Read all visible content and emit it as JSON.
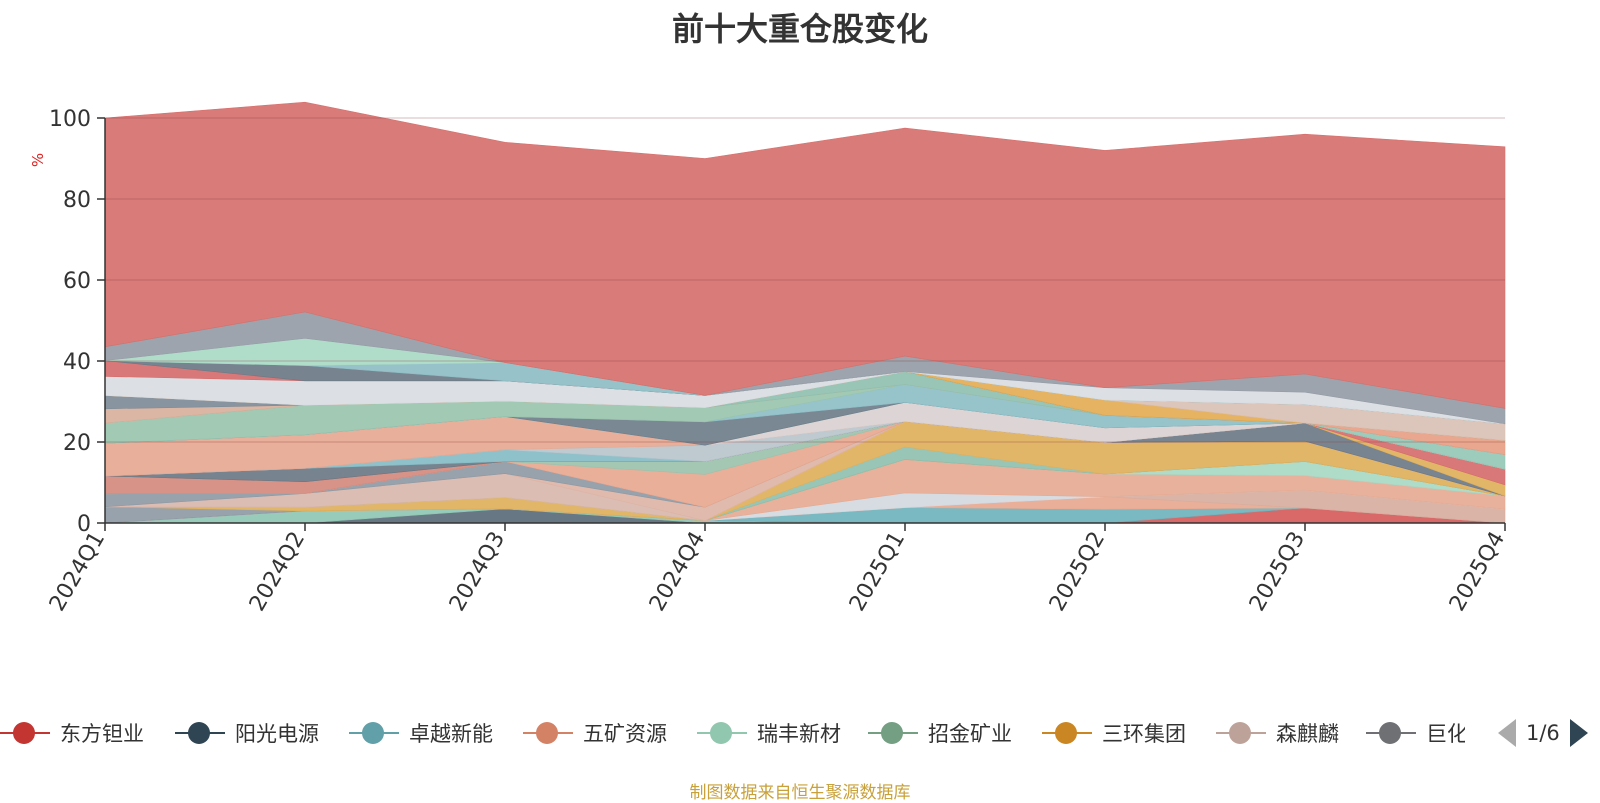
{
  "chart_data": {
    "type": "area",
    "stacked": true,
    "title": "前十大重仓股变化",
    "ylabel": "%",
    "ylim": [
      0,
      100
    ],
    "yticks": [
      0,
      20,
      40,
      60,
      80,
      100
    ],
    "categories": [
      "2024Q1",
      "2024Q2",
      "2024Q3",
      "2024Q4",
      "2025Q1",
      "2025Q2",
      "2025Q3",
      "2025Q4"
    ],
    "series": [
      {
        "color": "#5b6b7a",
        "values": [
          0.0,
          0.0,
          3.5,
          0.0,
          0.0,
          0.0,
          0.0,
          0.0
        ]
      },
      {
        "color": "#8fc7b3",
        "values": [
          0.0,
          3.0,
          0.0,
          0.6,
          0.0,
          0.0,
          0.0,
          0.0
        ]
      },
      {
        "color": "#d65b5b",
        "values": [
          0.0,
          0.0,
          0.0,
          0.0,
          0.0,
          0.0,
          3.7,
          0.0
        ]
      },
      {
        "color": "#6fb3bd",
        "values": [
          0.0,
          0.0,
          0.0,
          0.0,
          3.8,
          3.4,
          0.0,
          0.0
        ]
      },
      {
        "color": "#e8a890",
        "values": [
          0.0,
          0.0,
          0.0,
          0.0,
          0.0,
          3.1,
          0.0,
          0.0
        ]
      },
      {
        "color": "#d7ae9f",
        "values": [
          0.0,
          0.0,
          0.0,
          0.0,
          0.0,
          0.0,
          4.4,
          3.4
        ]
      },
      {
        "color": "#d4d8df",
        "values": [
          0.0,
          0.0,
          0.0,
          0.0,
          3.6,
          0.0,
          0.0,
          0.0
        ]
      },
      {
        "color": "#e6aa93",
        "values": [
          0.0,
          0.0,
          0.0,
          0.0,
          8.3,
          5.6,
          3.6,
          3.3
        ]
      },
      {
        "color": "#a8d8c4",
        "values": [
          0.0,
          0.0,
          0.0,
          0.0,
          0.0,
          0.0,
          3.5,
          0.0
        ]
      },
      {
        "color": "#8e9aa5",
        "values": [
          4.0,
          0.0,
          0.0,
          0.0,
          0.0,
          0.0,
          0.0,
          0.0
        ]
      },
      {
        "color": "#e0b05c",
        "values": [
          0.0,
          0.9,
          2.8,
          0.0,
          0.0,
          0.0,
          0.0,
          0.0
        ]
      },
      {
        "color": "#8fc0b0",
        "values": [
          0.0,
          0.0,
          0.0,
          0.0,
          3.1,
          0.0,
          0.0,
          0.0
        ]
      },
      {
        "color": "#e0b05c",
        "values": [
          0.0,
          0.0,
          0.0,
          0.0,
          6.3,
          7.8,
          5.0,
          0.0
        ]
      },
      {
        "color": "#d8b7ad",
        "values": [
          0.0,
          3.4,
          5.9,
          0.0,
          0.0,
          0.0,
          0.0,
          0.0
        ]
      },
      {
        "color": "#ddb4a6",
        "values": [
          0.0,
          0.0,
          0.0,
          3.3,
          0.0,
          0.0,
          0.0,
          0.0
        ]
      },
      {
        "color": "#8e9aa5",
        "values": [
          3.2,
          0.0,
          3.0,
          0.0,
          0.0,
          0.0,
          0.0,
          0.0
        ]
      },
      {
        "color": "#e8a890",
        "values": [
          0.0,
          0.0,
          0.0,
          8.1,
          0.0,
          0.0,
          0.0,
          0.0
        ]
      },
      {
        "color": "#9cc2ad",
        "values": [
          0.0,
          0.0,
          0.0,
          3.2,
          0.0,
          0.0,
          0.0,
          0.0
        ]
      },
      {
        "color": "#d58a7f",
        "values": [
          4.4,
          2.9,
          0.0,
          0.0,
          0.0,
          0.0,
          0.0,
          0.0
        ]
      },
      {
        "color": "#6d7b88",
        "values": [
          0.0,
          0.0,
          0.0,
          0.0,
          0.0,
          0.0,
          4.5,
          0.0
        ]
      },
      {
        "color": "#e0b05c",
        "values": [
          0.0,
          0.0,
          0.0,
          0.0,
          0.0,
          0.0,
          0.0,
          2.7
        ]
      },
      {
        "color": "#d66c6c",
        "values": [
          0.0,
          0.0,
          0.0,
          0.0,
          0.0,
          0.0,
          0.0,
          3.9
        ]
      },
      {
        "color": "#6b7a86",
        "values": [
          0.0,
          3.3,
          0.0,
          0.0,
          0.0,
          0.0,
          0.0,
          0.0
        ]
      },
      {
        "color": "#86bcc6",
        "values": [
          0.0,
          0.0,
          2.9,
          0.0,
          0.0,
          0.0,
          0.0,
          0.0
        ]
      },
      {
        "color": "#b9c4cc",
        "values": [
          0.0,
          0.0,
          0.0,
          4.0,
          0.0,
          0.0,
          0.0,
          0.0
        ]
      },
      {
        "color": "#e6a892",
        "values": [
          8.1,
          8.3,
          8.2,
          0.0,
          0.0,
          0.0,
          0.0,
          0.0
        ]
      },
      {
        "color": "#dad1d1",
        "values": [
          0.0,
          0.0,
          0.0,
          0.0,
          4.7,
          3.6,
          0.0,
          0.0
        ]
      },
      {
        "color": "#95c7b6",
        "values": [
          0.0,
          0.0,
          0.0,
          0.0,
          0.0,
          0.0,
          0.0,
          3.6
        ]
      },
      {
        "color": "#6f7e8b",
        "values": [
          0.0,
          0.0,
          0.0,
          5.8,
          0.0,
          0.0,
          0.0,
          0.0
        ]
      },
      {
        "color": "#8ebfc7",
        "values": [
          0.0,
          0.0,
          0.0,
          0.0,
          4.4,
          3.1,
          0.0,
          0.0
        ]
      },
      {
        "color": "#9ac4ad",
        "values": [
          5.0,
          7.3,
          3.8,
          3.5,
          0.0,
          0.0,
          0.0,
          0.0
        ]
      },
      {
        "color": "#e89f86",
        "values": [
          0.0,
          0.0,
          0.0,
          0.0,
          0.0,
          0.0,
          0.0,
          3.5
        ]
      },
      {
        "color": "#8fc0b0",
        "values": [
          0.0,
          0.0,
          0.0,
          0.0,
          3.2,
          0.0,
          0.0,
          0.0
        ]
      },
      {
        "color": "#d9b09c",
        "values": [
          3.5,
          0.0,
          0.0,
          0.0,
          0.0,
          0.0,
          0.0,
          0.0
        ]
      },
      {
        "color": "#7e8c98",
        "values": [
          3.3,
          0.0,
          0.0,
          0.0,
          0.0,
          0.0,
          0.0,
          0.0
        ]
      },
      {
        "color": "#e3ac55",
        "values": [
          0.0,
          0.0,
          0.0,
          0.0,
          0.0,
          3.8,
          0.0,
          0.0
        ]
      },
      {
        "color": "#d9c0b4",
        "values": [
          0.0,
          0.0,
          0.0,
          0.0,
          0.0,
          0.0,
          4.6,
          4.1
        ]
      },
      {
        "color": "#d9dde3",
        "values": [
          4.7,
          6.0,
          5.0,
          3.0,
          0.0,
          0.0,
          0.0,
          0.0
        ]
      },
      {
        "color": "#d66c6c",
        "values": [
          3.9,
          0.0,
          0.0,
          0.0,
          0.0,
          0.0,
          0.0,
          0.0
        ]
      },
      {
        "color": "#6b7a86",
        "values": [
          0.0,
          3.8,
          0.0,
          0.0,
          0.0,
          0.0,
          0.0,
          0.0
        ]
      },
      {
        "color": "#8ebdc4",
        "values": [
          0.0,
          0.0,
          4.5,
          0.0,
          0.0,
          0.0,
          0.0,
          0.0
        ]
      },
      {
        "color": "#a9dac4",
        "values": [
          0.0,
          6.7,
          0.0,
          0.0,
          0.0,
          0.0,
          0.0,
          0.0
        ]
      },
      {
        "color": "#d9dde3",
        "values": [
          0.0,
          0.0,
          0.0,
          0.0,
          0.0,
          3.0,
          3.0,
          0.0
        ]
      },
      {
        "color": "#959ca6",
        "values": [
          3.4,
          6.5,
          0.0,
          0.0,
          3.8,
          0.0,
          4.5,
          3.8
        ]
      },
      {
        "color": "#d6706d",
        "values": [
          56.5,
          51.8,
          54.4,
          58.5,
          56.3,
          58.6,
          59.2,
          64.6
        ]
      }
    ],
    "legend": [
      {
        "name": "东方钽业",
        "color": "#c23531"
      },
      {
        "name": "阳光电源",
        "color": "#2f4554"
      },
      {
        "name": "卓越新能",
        "color": "#61a0a8"
      },
      {
        "name": "五矿资源",
        "color": "#d48265"
      },
      {
        "name": "瑞丰新材",
        "color": "#91c7ae"
      },
      {
        "name": "招金矿业",
        "color": "#749f83"
      },
      {
        "name": "三环集团",
        "color": "#ca8622"
      },
      {
        "name": "森麒麟",
        "color": "#bda29a"
      },
      {
        "name": "巨化股份",
        "color": "#6e7074"
      }
    ],
    "legend_page": "1/6",
    "source_note": "制图数据来自恒生聚源数据库"
  }
}
